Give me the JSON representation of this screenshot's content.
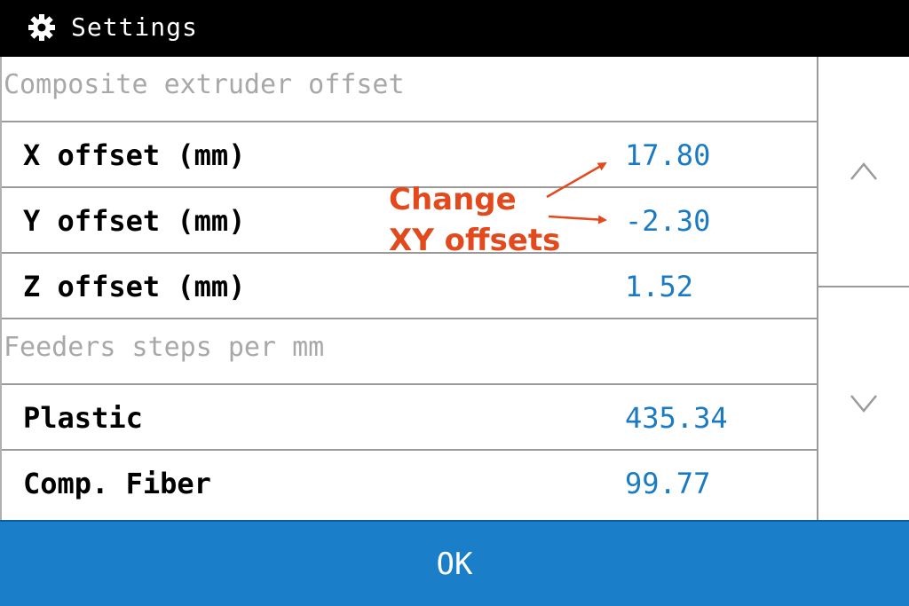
{
  "header": {
    "title": "Settings",
    "icon": "gear-icon"
  },
  "sections": [
    {
      "heading": "Composite extruder offset",
      "items": [
        {
          "label": "X offset (mm)",
          "value": "17.80"
        },
        {
          "label": "Y offset (mm)",
          "value": "-2.30"
        },
        {
          "label": "Z offset (mm)",
          "value": "1.52"
        }
      ]
    },
    {
      "heading": "Feeders steps per mm",
      "items": [
        {
          "label": "Plastic",
          "value": "435.34"
        },
        {
          "label": "Comp. Fiber",
          "value": "99.77"
        }
      ]
    }
  ],
  "scroll": {
    "up_glyph": "^",
    "down_glyph": "v"
  },
  "footer": {
    "ok_label": "OK"
  },
  "annotation": {
    "line1": "Change",
    "line2": "XY offsets",
    "color": "#e24a1e"
  },
  "colors": {
    "value": "#1b7ac4",
    "ok_bar": "#1a7fc8",
    "header_bg": "#000000"
  }
}
